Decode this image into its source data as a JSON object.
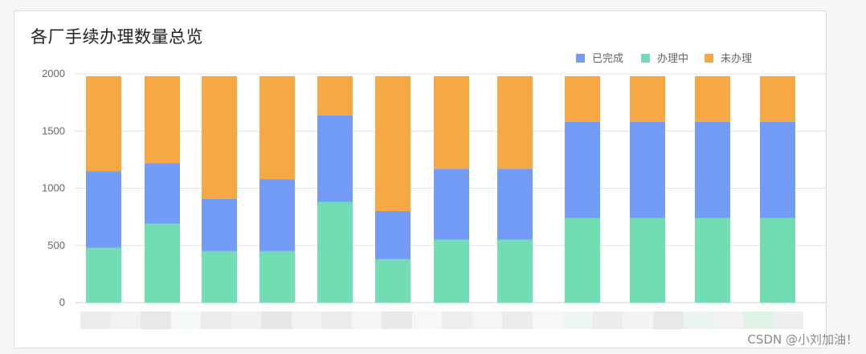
{
  "title": "各厂手续办理数量总览",
  "watermark": "CSDN @小刘加油！",
  "chart_data": {
    "type": "bar",
    "stacked": true,
    "categories": [
      "",
      "",
      "",
      "",
      "",
      "",
      "",
      "",
      "",
      "",
      "",
      ""
    ],
    "series": [
      {
        "name": "办理中",
        "color": "#72dcb2",
        "values": [
          480,
          690,
          450,
          450,
          880,
          380,
          550,
          550,
          740,
          740,
          740,
          740
        ]
      },
      {
        "name": "已完成",
        "color": "#739cf7",
        "values": [
          670,
          530,
          460,
          630,
          760,
          420,
          620,
          620,
          840,
          840,
          840,
          840
        ]
      },
      {
        "name": "未办理",
        "color": "#f5a844",
        "values": [
          830,
          760,
          1070,
          900,
          340,
          1180,
          810,
          810,
          400,
          400,
          400,
          400
        ]
      }
    ],
    "legend": {
      "items": [
        "已完成",
        "办理中",
        "未办理"
      ],
      "position": "top-right"
    },
    "yticks": [
      "0",
      "500",
      "1000",
      "1500",
      "2000"
    ],
    "ylim": [
      0,
      2000
    ],
    "grid": true
  }
}
